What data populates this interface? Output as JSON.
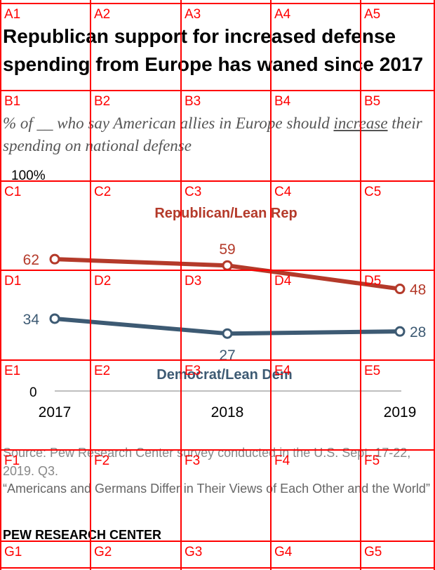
{
  "title": "Republican support for increased defense spending from Europe has waned since 2017",
  "subtitle": {
    "part1": "% of __ who say American allies in Europe should ",
    "emphasis": "increase",
    "part2": " their spending on national defense"
  },
  "chart_data": {
    "type": "line",
    "x": [
      "2017",
      "2018",
      "2019"
    ],
    "ylim": [
      0,
      100
    ],
    "y_top_label": "100%",
    "y_bottom_label": "0",
    "series": [
      {
        "name": "Republican/Lean Rep",
        "values": [
          62,
          59,
          48
        ],
        "labels": [
          "62",
          "59",
          "48"
        ],
        "color": "#b43a2a"
      },
      {
        "name": "Democrat/Lean Dem",
        "values": [
          34,
          27,
          28
        ],
        "labels": [
          "34",
          "27",
          "28"
        ],
        "color": "#3d5a73"
      }
    ]
  },
  "source": "Source: Pew Research Center survey conducted in the U.S. Sept. 17-22, 2019. Q3.",
  "report": "“Americans and Germans Differ in Their Views of Each Other and the World”",
  "brand": "PEW RESEARCH CENTER",
  "grid": {
    "color": "#ff0000",
    "cells": [
      "A1",
      "A2",
      "A3",
      "A4",
      "A5",
      "B1",
      "B2",
      "B3",
      "B4",
      "B5",
      "C1",
      "C2",
      "C3",
      "C4",
      "C5",
      "D1",
      "D2",
      "D3",
      "D4",
      "D5",
      "E1",
      "E2",
      "E3",
      "E4",
      "E5",
      "F1",
      "F2",
      "F3",
      "F4",
      "F5",
      "G1",
      "G2",
      "G3",
      "G4",
      "G5"
    ]
  }
}
